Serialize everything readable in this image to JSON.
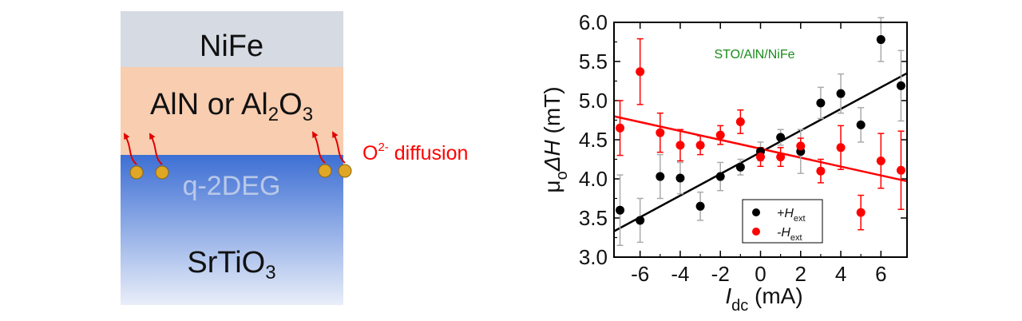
{
  "stack": {
    "layers": {
      "top": "NiFe",
      "middle_prefix": "AlN or Al",
      "middle_sub1": "2",
      "middle_mid": "O",
      "middle_sub2": "3",
      "interface": "q-2DEG",
      "substrate_prefix": "SrTiO",
      "substrate_sub": "3"
    },
    "annotation": {
      "prefix": "O",
      "sup": "2-",
      "suffix": " diffusion"
    },
    "colors": {
      "nife": "#d5dae3",
      "insulator": "#f8cdb0",
      "sto_top": "#3d6fd4",
      "sto_bottom": "#e9eef9",
      "particle": "#e0a625",
      "arrow": "#e00000",
      "annotation": "#ff0000"
    }
  },
  "chart_data": {
    "type": "scatter",
    "annotation": "STO/AlN/NiFe",
    "xlabel": {
      "main": "I",
      "sub": "dc",
      "unit": " (mA)"
    },
    "ylabel": {
      "prefix": "μ",
      "sub": "o",
      "main": "ΔH",
      "unit": " (mT)"
    },
    "xlim": [
      -7.3,
      7.3
    ],
    "ylim": [
      3.0,
      6.0
    ],
    "xticks": [
      -6,
      -4,
      -2,
      0,
      2,
      4,
      6
    ],
    "xtick_labels": [
      "-6",
      "-4",
      "-2",
      "0",
      "2",
      "4",
      "6"
    ],
    "yticks": [
      3.0,
      3.5,
      4.0,
      4.5,
      5.0,
      5.5,
      6.0
    ],
    "ytick_labels": [
      "3.0",
      "3.5",
      "4.0",
      "4.5",
      "5.0",
      "5.5",
      "6.0"
    ],
    "legend_position": "lower-right",
    "series": [
      {
        "name_prefix": "+H",
        "name_sub": "ext",
        "color": "#000000",
        "x": [
          -7,
          -6,
          -5,
          -4,
          -3,
          -2,
          -1,
          0,
          1,
          2,
          3,
          4,
          5,
          6,
          7
        ],
        "y": [
          3.6,
          3.47,
          4.03,
          4.01,
          3.65,
          4.03,
          4.15,
          4.35,
          4.53,
          4.35,
          4.97,
          5.09,
          4.69,
          5.78,
          5.19
        ],
        "err": [
          0.45,
          0.28,
          0.28,
          0.2,
          0.18,
          0.18,
          0.1,
          0.12,
          0.1,
          0.28,
          0.2,
          0.25,
          0.22,
          0.28,
          0.45
        ],
        "fit": {
          "x": [
            -7.3,
            7.3
          ],
          "y": [
            3.33,
            5.35
          ]
        }
      },
      {
        "name_prefix": "-H",
        "name_sub": "ext",
        "color": "#ff0000",
        "x": [
          -7,
          -6,
          -5,
          -4,
          -3,
          -2,
          -1,
          0,
          1,
          2,
          3,
          4,
          5,
          6,
          7
        ],
        "y": [
          4.65,
          5.37,
          4.59,
          4.43,
          4.43,
          4.56,
          4.73,
          4.28,
          4.28,
          4.42,
          4.1,
          4.4,
          3.57,
          4.23,
          4.11
        ],
        "err": [
          0.35,
          0.42,
          0.25,
          0.2,
          0.12,
          0.12,
          0.15,
          0.12,
          0.12,
          0.1,
          0.15,
          0.28,
          0.22,
          0.35,
          0.5
        ],
        "fit": {
          "x": [
            -7.3,
            7.3
          ],
          "y": [
            4.8,
            3.97
          ]
        }
      }
    ]
  }
}
